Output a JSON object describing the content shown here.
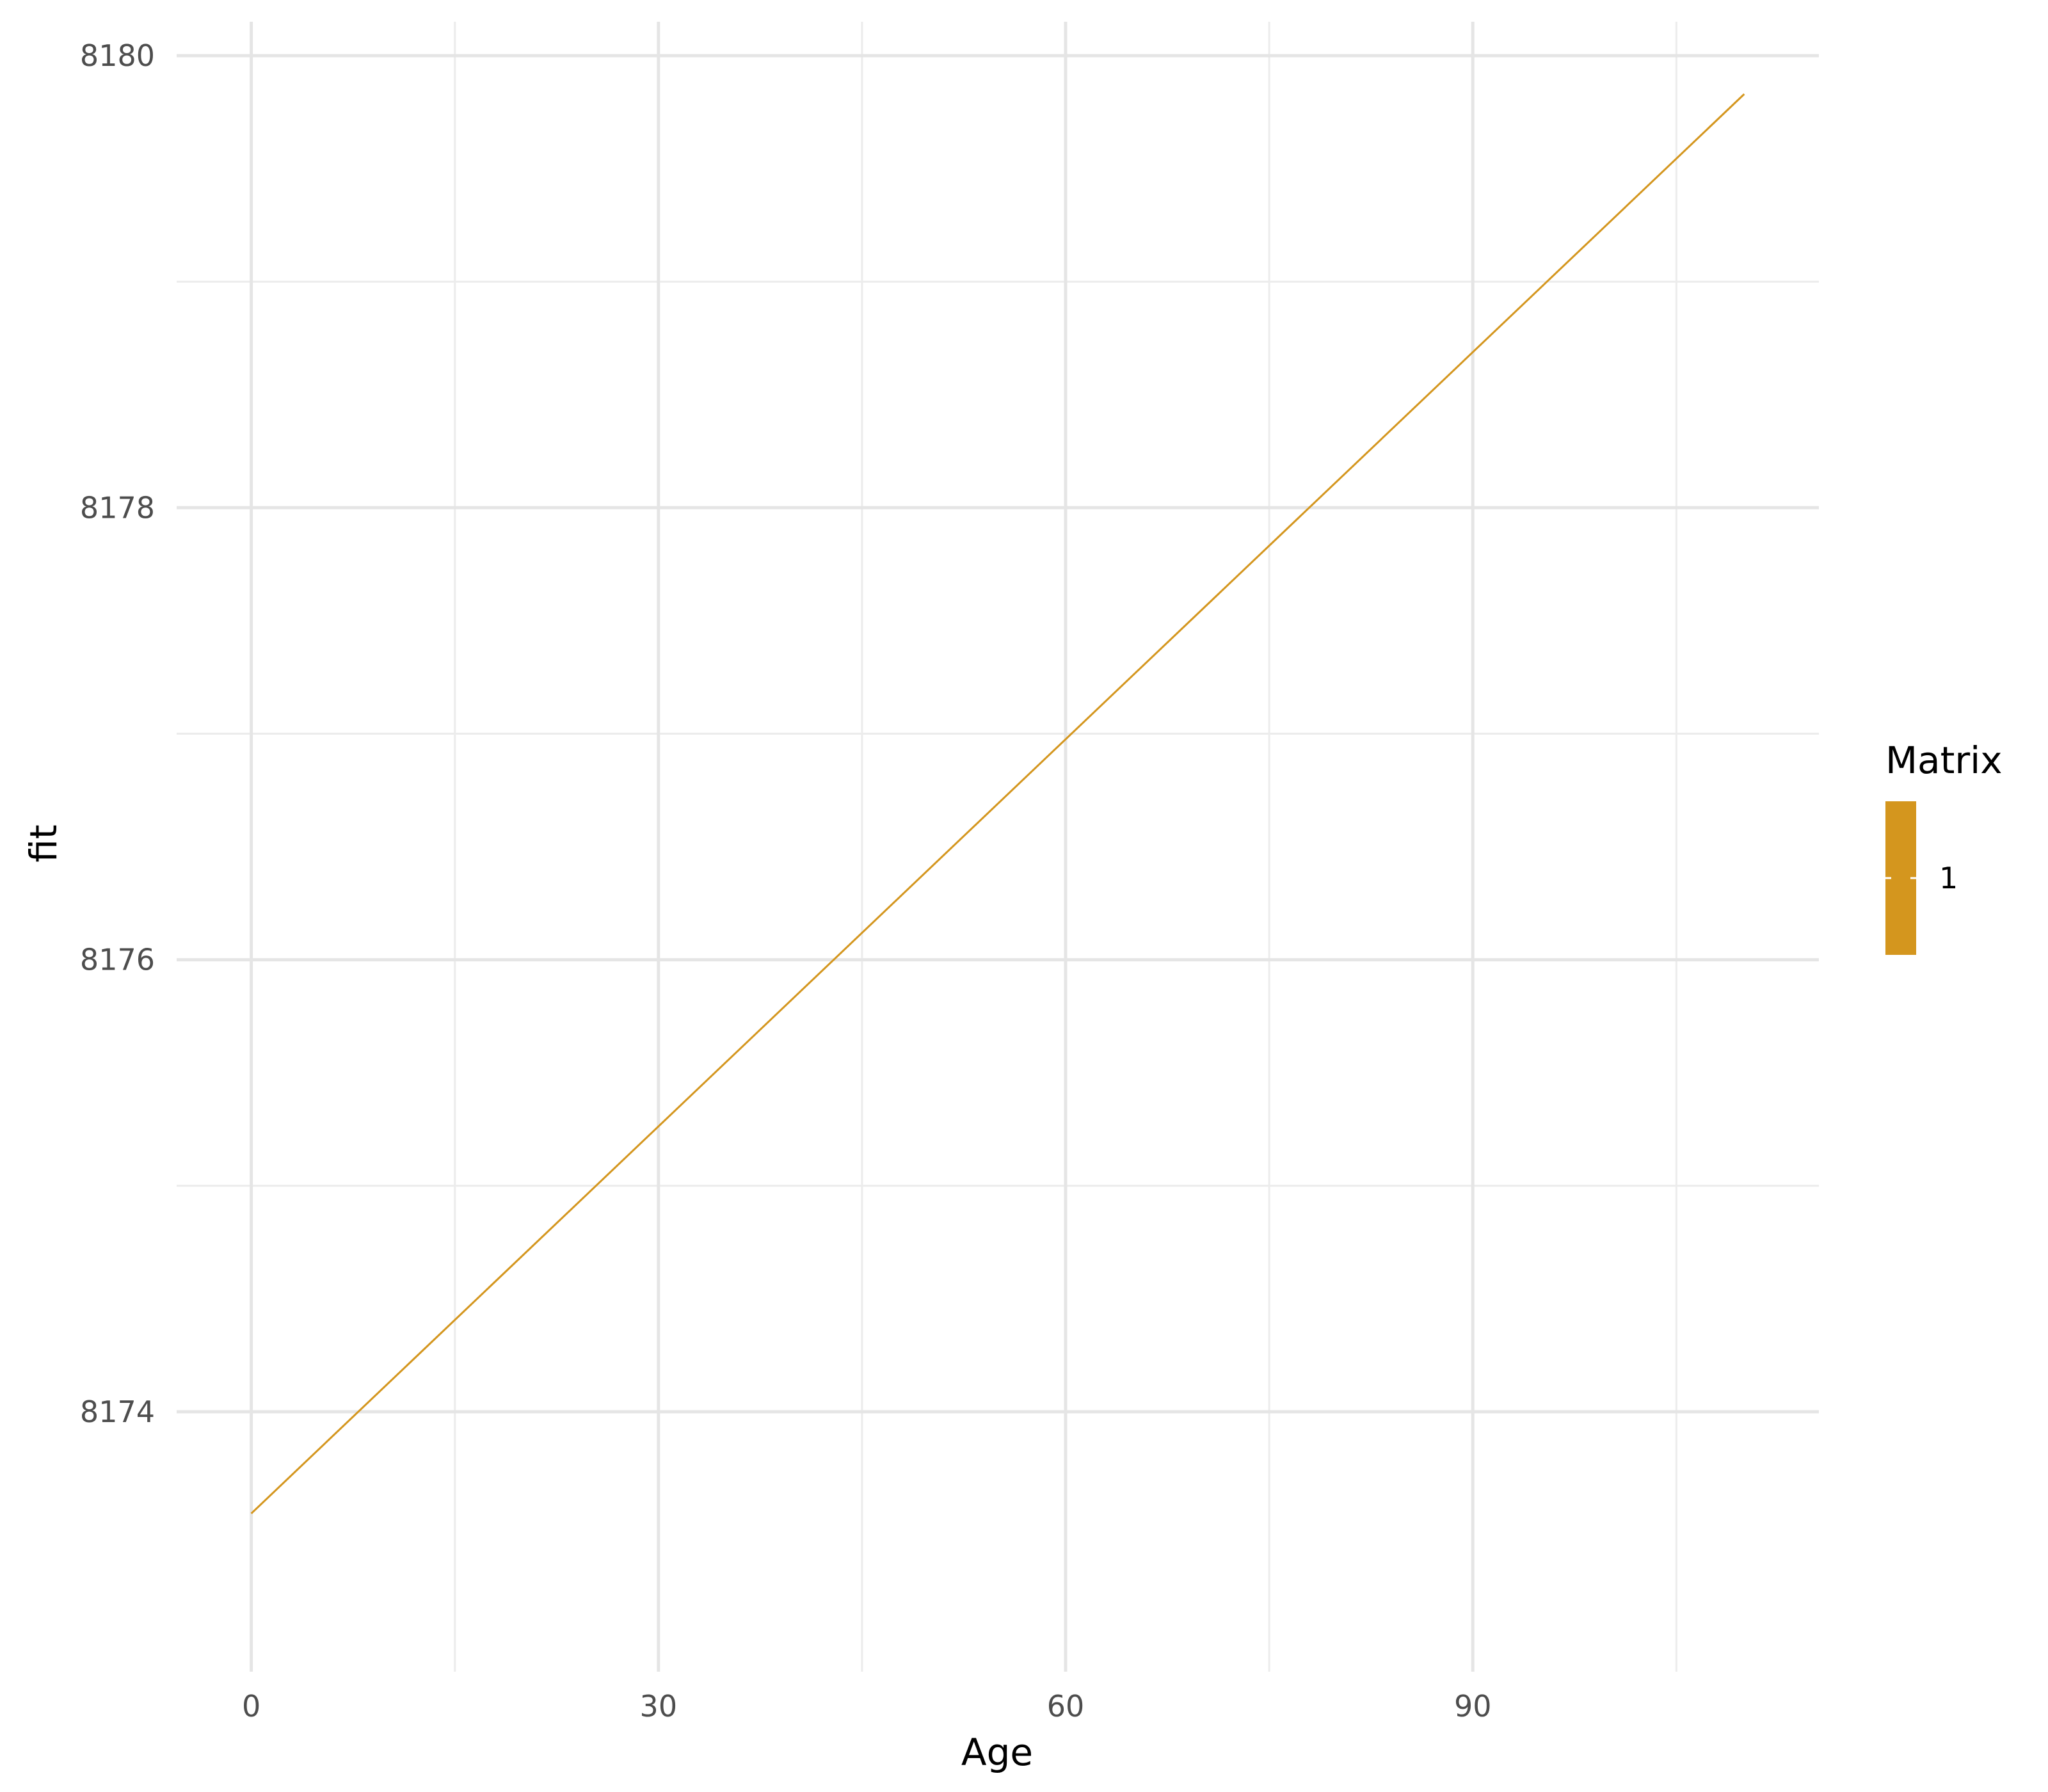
{
  "chart_data": {
    "type": "line",
    "title": "",
    "xlabel": "Age",
    "ylabel": "fit",
    "xlim": [
      -5.5,
      115.5
    ],
    "ylim": [
      8172.85,
      8180.15
    ],
    "x_ticks": [
      0,
      30,
      60,
      90
    ],
    "y_ticks": [
      8174,
      8176,
      8178,
      8180
    ],
    "x_minor_ticks": [
      15,
      45,
      75,
      105
    ],
    "y_minor_ticks": [
      8175,
      8177,
      8179
    ],
    "grid": true,
    "legend": {
      "title": "Matrix",
      "position": "right",
      "entries": [
        {
          "label": "1",
          "color": "#D4961E"
        }
      ]
    },
    "series": [
      {
        "color": "#D4961E",
        "x": [
          0,
          110
        ],
        "y": [
          8173.55,
          8179.83
        ]
      }
    ]
  }
}
